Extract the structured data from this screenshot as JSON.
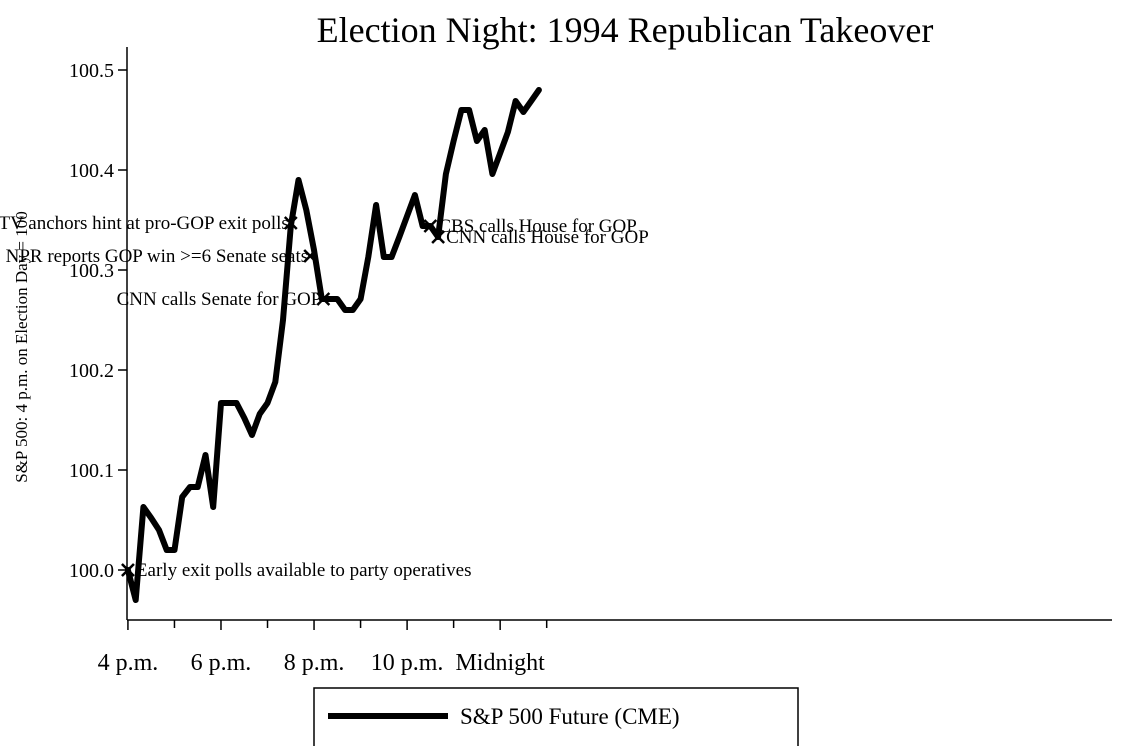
{
  "chart_data": {
    "type": "line",
    "title": "Election Night: 1994 Republican Takeover",
    "ylabel": "S&P 500: 4 p.m. on Election Day = 100",
    "xlabel": "",
    "ylim": [
      99.95,
      100.52
    ],
    "xlim": [
      3.98,
      25.15
    ],
    "y_ticks": [
      {
        "value": 100.0,
        "label": "100.0"
      },
      {
        "value": 100.1,
        "label": "100.1"
      },
      {
        "value": 100.2,
        "label": "100.2"
      },
      {
        "value": 100.3,
        "label": "100.3"
      },
      {
        "value": 100.4,
        "label": "100.4"
      },
      {
        "value": 100.5,
        "label": "100.5"
      }
    ],
    "x_ticks": [
      {
        "value": 4,
        "label": "4 p.m."
      },
      {
        "value": 6,
        "label": "6 p.m."
      },
      {
        "value": 8,
        "label": "8 p.m."
      },
      {
        "value": 10,
        "label": "10 p.m."
      },
      {
        "value": 12,
        "label": "Midnight"
      }
    ],
    "x_minor_ticks": [
      5,
      7,
      9,
      11,
      13
    ],
    "grid": false,
    "legend_position": "bottom-center",
    "series": [
      {
        "name": "S&P 500 Future (CME)",
        "color": "#000000",
        "points": [
          [
            4.0,
            100.0
          ],
          [
            4.167,
            99.97
          ],
          [
            4.333,
            100.063
          ],
          [
            4.5,
            100.052
          ],
          [
            4.667,
            100.04
          ],
          [
            4.833,
            100.02
          ],
          [
            5.0,
            100.02
          ],
          [
            5.167,
            100.073
          ],
          [
            5.333,
            100.083
          ],
          [
            5.5,
            100.083
          ],
          [
            5.667,
            100.115
          ],
          [
            5.833,
            100.063
          ],
          [
            6.0,
            100.167
          ],
          [
            6.167,
            100.167
          ],
          [
            6.333,
            100.167
          ],
          [
            6.5,
            100.152
          ],
          [
            6.667,
            100.135
          ],
          [
            6.833,
            100.156
          ],
          [
            7.0,
            100.167
          ],
          [
            7.167,
            100.188
          ],
          [
            7.333,
            100.25
          ],
          [
            7.5,
            100.344
          ],
          [
            7.667,
            100.39
          ],
          [
            7.833,
            100.36
          ],
          [
            8.0,
            100.32
          ],
          [
            8.167,
            100.271
          ],
          [
            8.333,
            100.271
          ],
          [
            8.5,
            100.271
          ],
          [
            8.667,
            100.26
          ],
          [
            8.833,
            100.26
          ],
          [
            9.0,
            100.271
          ],
          [
            9.167,
            100.313
          ],
          [
            9.333,
            100.365
          ],
          [
            9.5,
            100.313
          ],
          [
            9.667,
            100.313
          ],
          [
            9.833,
            100.333
          ],
          [
            10.0,
            100.354
          ],
          [
            10.167,
            100.375
          ],
          [
            10.333,
            100.344
          ],
          [
            10.5,
            100.344
          ],
          [
            10.667,
            100.333
          ],
          [
            10.833,
            100.396
          ],
          [
            11.0,
            100.429
          ],
          [
            11.167,
            100.46
          ],
          [
            11.333,
            100.46
          ],
          [
            11.5,
            100.429
          ],
          [
            11.667,
            100.44
          ],
          [
            11.833,
            100.396
          ],
          [
            12.0,
            100.417
          ],
          [
            12.167,
            100.438
          ],
          [
            12.333,
            100.469
          ],
          [
            12.5,
            100.458
          ],
          [
            12.667,
            100.469
          ],
          [
            12.833,
            100.48
          ]
        ]
      }
    ],
    "annotations": [
      {
        "x": 4.0,
        "y": 100.0,
        "text": "Early exit polls available to party operatives",
        "side": "right"
      },
      {
        "x": 7.5,
        "y": 100.347,
        "text": "TV anchors hint at pro-GOP exit polls",
        "side": "left"
      },
      {
        "x": 7.917,
        "y": 100.314,
        "text": "NPR reports GOP win >=6 Senate seats",
        "side": "left"
      },
      {
        "x": 8.2,
        "y": 100.271,
        "text": "CNN calls Senate for GOP",
        "side": "left"
      },
      {
        "x": 10.5,
        "y": 100.344,
        "text": "CBS calls House for GOP",
        "side": "right"
      },
      {
        "x": 10.667,
        "y": 100.333,
        "text": "CNN calls House for GOP",
        "side": "right"
      }
    ]
  },
  "legend": {
    "label": "S&P 500 Future (CME)"
  }
}
